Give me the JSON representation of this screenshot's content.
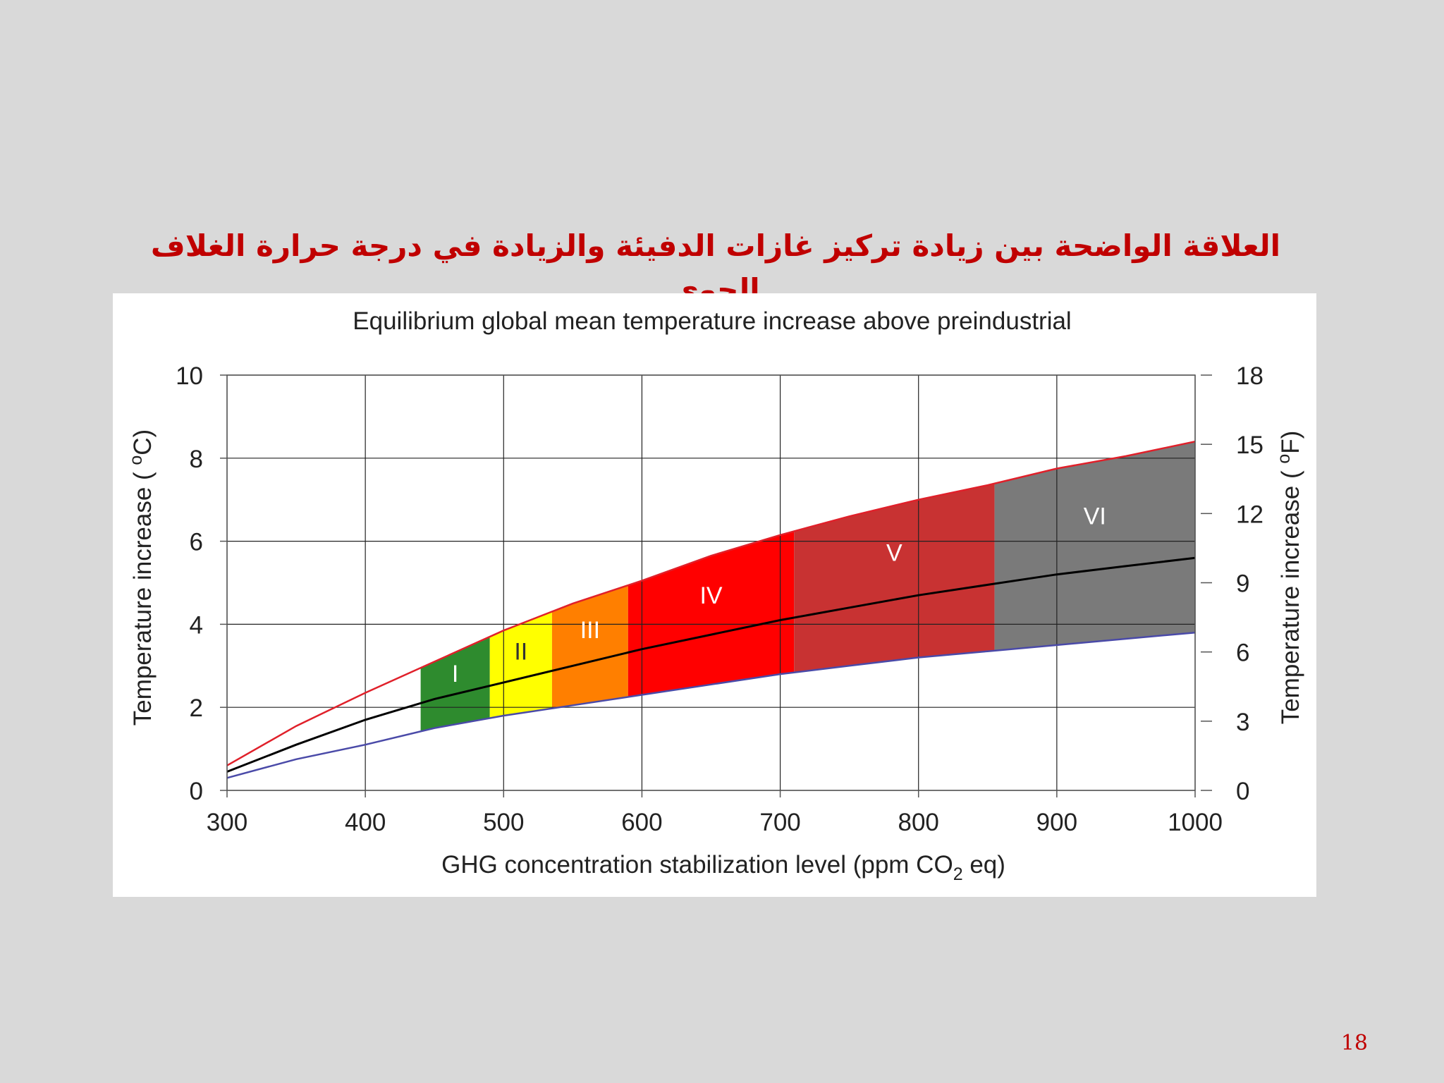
{
  "slide": {
    "title": "العلاقة الواضحة بين زيادة تركيز غازات الدفيئة والزيادة في درجة حرارة الغلاف الجوي",
    "page_number": "18"
  },
  "chart_data": {
    "type": "area",
    "title": "Equilibrium global mean temperature increase above preindustrial",
    "xlabel": "GHG concentration stabilization level (ppm CO2 eq)",
    "xlabel_parts": {
      "main": "GHG concentration stabilization level (ppm CO",
      "subscript": "2",
      "tail": " eq)"
    },
    "ylabel": "Temperature increase (°C)",
    "ylabel_parts": {
      "main": "Temperature increase ( ",
      "superscript": "o",
      "tail": "C)"
    },
    "y2label": "Temperature increase (°F)",
    "y2label_parts": {
      "main": "Temperature increase ( ",
      "superscript": "o",
      "tail": "F)"
    },
    "xlim": [
      300,
      1000
    ],
    "ylim": [
      0,
      10
    ],
    "y2lim": [
      0,
      18
    ],
    "xticks": [
      300,
      400,
      500,
      600,
      700,
      800,
      900,
      1000
    ],
    "yticks": [
      0,
      2,
      4,
      6,
      8,
      10
    ],
    "y2ticks": [
      0,
      3,
      6,
      9,
      12,
      15,
      18
    ],
    "grid": true,
    "x": [
      300,
      350,
      400,
      450,
      500,
      550,
      600,
      650,
      700,
      750,
      800,
      850,
      900,
      950,
      1000
    ],
    "series": [
      {
        "role": "upper",
        "color": "#e0202a",
        "values": [
          0.6,
          1.55,
          2.35,
          3.1,
          3.85,
          4.5,
          5.05,
          5.65,
          6.15,
          6.6,
          7.0,
          7.35,
          7.75,
          8.05,
          8.4
        ]
      },
      {
        "role": "best",
        "color": "#000000",
        "values": [
          0.45,
          1.1,
          1.7,
          2.2,
          2.6,
          3.0,
          3.4,
          3.75,
          4.1,
          4.4,
          4.7,
          4.95,
          5.2,
          5.4,
          5.6
        ]
      },
      {
        "role": "lower",
        "color": "#4a4aa8",
        "values": [
          0.3,
          0.75,
          1.1,
          1.5,
          1.8,
          2.05,
          2.3,
          2.55,
          2.8,
          3.0,
          3.2,
          3.35,
          3.5,
          3.65,
          3.8
        ]
      }
    ],
    "categories": [
      {
        "label": "I",
        "from": 440,
        "to": 490,
        "color": "#2e8b2e",
        "label_color": "#ffffff"
      },
      {
        "label": "II",
        "from": 490,
        "to": 535,
        "color": "#ffff00",
        "label_color": "#333333"
      },
      {
        "label": "III",
        "from": 535,
        "to": 590,
        "color": "#ff7f00",
        "label_color": "#ffffff"
      },
      {
        "label": "IV",
        "from": 590,
        "to": 710,
        "color": "#ff0000",
        "label_color": "#ffffff"
      },
      {
        "label": "V",
        "from": 710,
        "to": 855,
        "color": "#c83232",
        "label_color": "#ffffff"
      },
      {
        "label": "VI",
        "from": 855,
        "to": 1000,
        "color": "#7a7a7a",
        "label_color": "#ffffff"
      }
    ]
  }
}
